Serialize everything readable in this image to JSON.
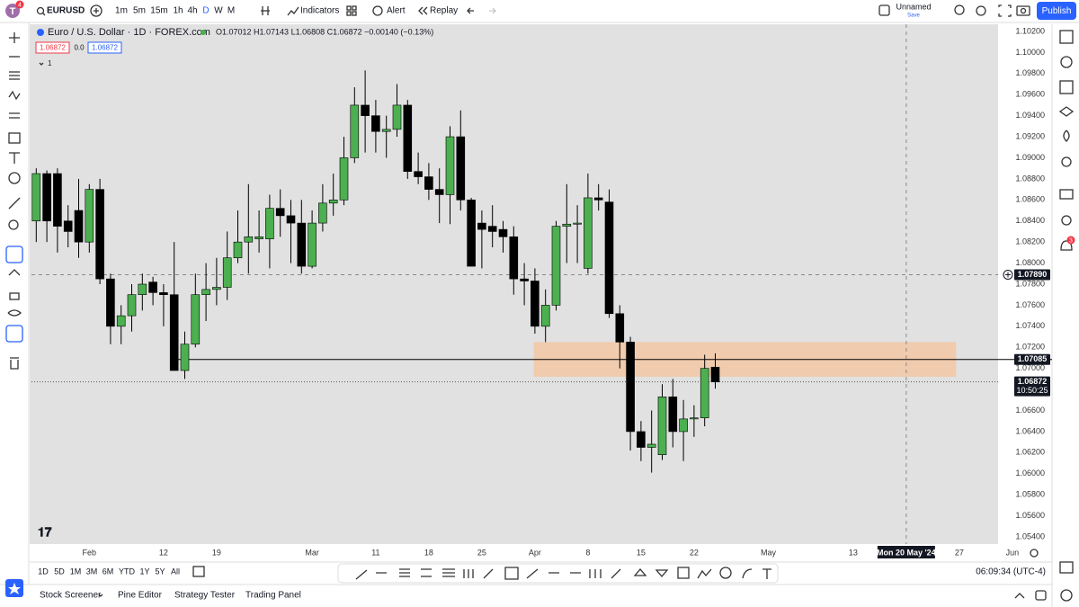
{
  "toolbar": {
    "logo_badge": "4",
    "symbol": "EURUSD",
    "intervals": [
      "1m",
      "5m",
      "15m",
      "1h",
      "4h",
      "D",
      "W",
      "M"
    ],
    "indicators": "Indicators",
    "alert": "Alert",
    "replay": "Replay",
    "layout_name": "Unnamed",
    "save": "Save",
    "publish": "Publish"
  },
  "legend": {
    "title": "Euro / U.S. Dollar · 1D · FOREX.com",
    "ohlc": "O1.07012 H1.07143 L1.06808 C1.06872 −0.00140 (−0.13%)",
    "bid": "1.06872",
    "spread": "0.0",
    "ask": "1.06872",
    "collapse": "1"
  },
  "chart_data": {
    "type": "candlestick",
    "x": [
      0,
      1,
      2,
      3,
      4,
      5,
      6,
      7,
      8,
      9,
      10,
      11,
      12,
      13,
      14,
      15,
      16,
      17,
      18,
      19,
      20,
      21,
      22,
      23,
      24,
      25,
      26,
      27,
      28,
      29,
      30,
      31,
      32,
      33,
      34,
      35,
      36,
      37,
      38,
      39,
      40,
      41,
      42,
      43,
      44,
      45,
      46,
      47,
      48,
      49,
      50,
      51,
      52,
      53,
      54,
      55,
      56,
      57,
      58,
      59,
      60,
      61,
      62,
      63,
      64
    ],
    "open": [
      1.084,
      1.0885,
      1.0885,
      1.084,
      1.085,
      1.082,
      1.087,
      1.0785,
      1.074,
      1.075,
      1.077,
      1.0782,
      1.0772,
      1.077,
      1.0698,
      1.0723,
      1.077,
      1.0775,
      1.0777,
      1.0805,
      1.082,
      1.0823,
      1.0823,
      1.0852,
      1.0845,
      1.0838,
      1.0797,
      1.0838,
      1.0857,
      1.086,
      1.09,
      1.095,
      1.094,
      1.0925,
      1.0927,
      1.095,
      1.0887,
      1.0882,
      1.087,
      1.0865,
      1.092,
      1.086,
      1.0838,
      1.0835,
      1.0832,
      1.0825,
      1.0785,
      1.0783,
      1.074,
      1.076,
      1.0835,
      1.0837,
      1.0795,
      1.0862,
      1.0858,
      1.0752,
      1.0725,
      1.064,
      1.0625,
      1.0618,
      1.0673,
      1.064,
      1.0652,
      1.0653,
      1.07012
    ],
    "high": [
      1.089,
      1.0888,
      1.089,
      1.0855,
      1.088,
      1.0875,
      1.088,
      1.079,
      1.076,
      1.078,
      1.079,
      1.0787,
      1.078,
      1.082,
      1.0735,
      1.079,
      1.08,
      1.0805,
      1.083,
      1.085,
      1.0875,
      1.085,
      1.0865,
      1.087,
      1.086,
      1.086,
      1.085,
      1.0875,
      1.0885,
      1.092,
      1.0967,
      1.0983,
      1.0955,
      1.094,
      1.097,
      1.0955,
      1.0905,
      1.0895,
      1.089,
      1.093,
      1.0945,
      1.0862,
      1.085,
      1.0855,
      1.084,
      1.0835,
      1.08,
      1.0795,
      1.0775,
      1.084,
      1.0875,
      1.0855,
      1.0885,
      1.0875,
      1.087,
      1.076,
      1.073,
      1.065,
      1.066,
      1.0685,
      1.069,
      1.067,
      1.0665,
      1.0713,
      1.07143
    ],
    "low": [
      1.082,
      1.082,
      1.081,
      1.0815,
      1.0805,
      1.081,
      1.078,
      1.0723,
      1.0723,
      1.0735,
      1.0755,
      1.076,
      1.074,
      1.0698,
      1.069,
      1.072,
      1.0745,
      1.076,
      1.0765,
      1.08,
      1.079,
      1.081,
      1.0795,
      1.0825,
      1.08,
      1.079,
      1.0795,
      1.083,
      1.0845,
      1.0855,
      1.0895,
      1.0905,
      1.0905,
      1.09,
      1.092,
      1.088,
      1.0875,
      1.086,
      1.0838,
      1.0837,
      1.085,
      1.0797,
      1.0795,
      1.0815,
      1.081,
      1.077,
      1.076,
      1.0733,
      1.0725,
      1.0755,
      1.08,
      1.08,
      1.079,
      1.085,
      1.0748,
      1.07,
      1.0622,
      1.0612,
      1.0601,
      1.0613,
      1.0625,
      1.0612,
      1.0635,
      1.0645,
      1.06808
    ],
    "close": [
      1.0885,
      1.084,
      1.0835,
      1.083,
      1.082,
      1.087,
      1.0785,
      1.074,
      1.075,
      1.077,
      1.078,
      1.0772,
      1.077,
      1.0698,
      1.0723,
      1.077,
      1.0775,
      1.0777,
      1.0805,
      1.082,
      1.0825,
      1.0825,
      1.0852,
      1.0845,
      1.0838,
      1.0797,
      1.0838,
      1.0857,
      1.086,
      1.09,
      1.095,
      1.094,
      1.0925,
      1.0927,
      1.095,
      1.0887,
      1.0882,
      1.087,
      1.0865,
      1.092,
      1.086,
      1.0797,
      1.0832,
      1.083,
      1.0825,
      1.0785,
      1.0783,
      1.074,
      1.076,
      1.0835,
      1.0837,
      1.0838,
      1.0862,
      1.086,
      1.0752,
      1.0725,
      1.064,
      1.0625,
      1.0628,
      1.0673,
      1.064,
      1.0652,
      1.0653,
      1.07,
      1.06872
    ],
    "up_color": "#4caf50",
    "down_color": "#000000",
    "xlim": [
      -0.45,
      95.57
    ],
    "ylim": [
      1.05332,
      1.10268
    ],
    "grid": false,
    "xticks": [
      {
        "value": 5,
        "label": "Feb"
      },
      {
        "value": 12,
        "label": "12"
      },
      {
        "value": 17,
        "label": "19"
      },
      {
        "value": 26,
        "label": "Mar"
      },
      {
        "value": 32,
        "label": "11"
      },
      {
        "value": 37,
        "label": "18"
      },
      {
        "value": 42,
        "label": "25"
      },
      {
        "value": 47,
        "label": "Apr"
      },
      {
        "value": 52,
        "label": "8"
      },
      {
        "value": 57,
        "label": "15"
      },
      {
        "value": 62,
        "label": "22"
      },
      {
        "value": 69,
        "label": "May"
      },
      {
        "value": 77,
        "label": "13"
      },
      {
        "value": 87,
        "label": "27"
      },
      {
        "value": 92,
        "label": "Jun"
      }
    ],
    "yticks": [
      {
        "value": 1.102,
        "label": "1.10200"
      },
      {
        "value": 1.1,
        "label": "1.10000"
      },
      {
        "value": 1.098,
        "label": "1.09800"
      },
      {
        "value": 1.096,
        "label": "1.09600"
      },
      {
        "value": 1.094,
        "label": "1.09400"
      },
      {
        "value": 1.092,
        "label": "1.09200"
      },
      {
        "value": 1.09,
        "label": "1.09000"
      },
      {
        "value": 1.088,
        "label": "1.08800"
      },
      {
        "value": 1.086,
        "label": "1.08600"
      },
      {
        "value": 1.084,
        "label": "1.08400"
      },
      {
        "value": 1.082,
        "label": "1.08200"
      },
      {
        "value": 1.08,
        "label": "1.08000"
      },
      {
        "value": 1.078,
        "label": "1.07800"
      },
      {
        "value": 1.076,
        "label": "1.07600"
      },
      {
        "value": 1.074,
        "label": "1.07400"
      },
      {
        "value": 1.072,
        "label": "1.07200"
      },
      {
        "value": 1.07,
        "label": "1.07000"
      },
      {
        "value": 1.066,
        "label": "1.06600"
      },
      {
        "value": 1.064,
        "label": "1.06400"
      },
      {
        "value": 1.062,
        "label": "1.06200"
      },
      {
        "value": 1.06,
        "label": "1.06000"
      },
      {
        "value": 1.058,
        "label": "1.05800"
      },
      {
        "value": 1.056,
        "label": "1.05600"
      },
      {
        "value": 1.054,
        "label": "1.05400"
      }
    ],
    "zone": {
      "x0": 46.9,
      "x1": 86.7,
      "y0": 1.0692,
      "y1": 1.0725,
      "color": "#f2c7a5"
    },
    "hline": {
      "x0": 13,
      "value": 1.07085
    },
    "last_price": {
      "value": 1.06872,
      "countdown": "10:50:25"
    },
    "crosshair": {
      "x": 82,
      "x_label": "Mon 20 May '24",
      "y": 1.0789,
      "y_label": "1.07890"
    }
  },
  "range_bar": {
    "ranges": [
      "1D",
      "5D",
      "1M",
      "3M",
      "6M",
      "YTD",
      "1Y",
      "5Y",
      "All"
    ],
    "clock": "06:09:34 (UTC-4)"
  },
  "bottom_tabs": [
    "Stock Screener",
    "Pine Editor",
    "Strategy Tester",
    "Trading Panel"
  ],
  "sidebar": {
    "alert_badge": "3"
  }
}
